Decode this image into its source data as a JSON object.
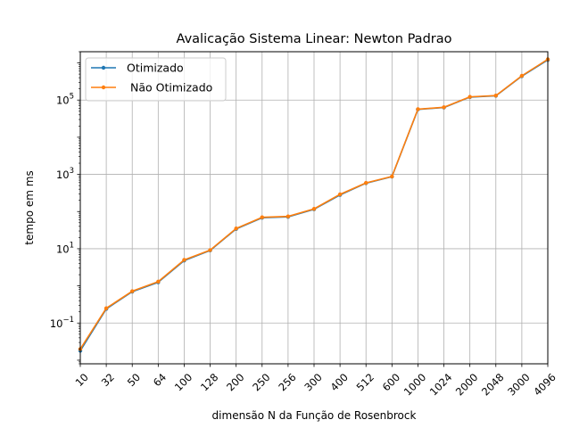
{
  "chart_data": {
    "type": "line",
    "title": "Avalicação Sistema Linear:  Newton Padrao",
    "xlabel": "dimensão N da Função de Rosenbrock",
    "ylabel": "tempo em ms",
    "categories": [
      "10",
      "32",
      "50",
      "64",
      "100",
      "128",
      "200",
      "250",
      "256",
      "300",
      "400",
      "512",
      "600",
      "1000",
      "1024",
      "2000",
      "2048",
      "3000",
      "4096"
    ],
    "y_scale": "log",
    "ylim": [
      0.008,
      2000000
    ],
    "y_ticks": [
      {
        "value": 0.1,
        "base": "10",
        "exp": "−1"
      },
      {
        "value": 10,
        "base": "10",
        "exp": "1"
      },
      {
        "value": 1000,
        "base": "10",
        "exp": "3"
      },
      {
        "value": 100000,
        "base": "10",
        "exp": "5"
      }
    ],
    "grid": true,
    "legend_position": "upper-left",
    "series": [
      {
        "name": "Otimizado",
        "color": "#1f77b4",
        "values": [
          0.018,
          0.24,
          0.7,
          1.25,
          4.8,
          9.0,
          34,
          68,
          72,
          115,
          280,
          580,
          870,
          56000,
          63000,
          120000,
          130000,
          440000,
          1200000
        ]
      },
      {
        "name": " Não Otimizado",
        "color": "#ff7f0e",
        "values": [
          0.02,
          0.25,
          0.72,
          1.3,
          5.0,
          9.2,
          35,
          70,
          74,
          118,
          290,
          590,
          880,
          57000,
          64000,
          122000,
          132000,
          450000,
          1250000
        ]
      }
    ]
  }
}
